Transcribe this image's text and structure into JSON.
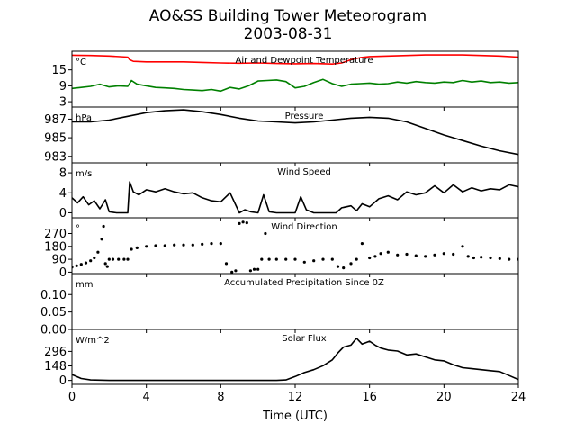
{
  "title_line1": "AO&SS Building Tower Meteorogram",
  "title_line2": "2003-08-31",
  "chart_data": {
    "type": "line",
    "xlabel": "Time (UTC)",
    "xlim": [
      0,
      24
    ],
    "xticks": [
      0,
      4,
      8,
      12,
      16,
      20,
      24
    ],
    "panels": [
      {
        "title": "Air and Dewpoint Temperature",
        "unit": "°C",
        "ylim": [
          1,
          22
        ],
        "yticks": [
          3,
          9,
          15
        ],
        "series": [
          {
            "color": "#ff0000",
            "style": "line",
            "x": [
              0,
              1,
              2,
              3,
              3.1,
              3.3,
              4,
              5,
              6,
              7,
              8,
              9,
              10,
              11,
              12,
              13,
              14,
              14.5,
              15,
              15.5,
              16,
              17,
              18,
              19,
              20,
              21,
              22,
              23,
              24
            ],
            "y": [
              20.5,
              20.4,
              20.2,
              19.8,
              18.8,
              18.2,
              18.0,
              18.0,
              18.0,
              17.8,
              17.6,
              17.5,
              17.6,
              17.4,
              17.3,
              17.4,
              17.2,
              17.6,
              18.8,
              19.6,
              20.0,
              20.2,
              20.4,
              20.6,
              20.6,
              20.6,
              20.4,
              20.2,
              19.8
            ]
          },
          {
            "color": "#008000",
            "style": "line",
            "x": [
              0,
              0.5,
              1,
              1.5,
              2,
              2.5,
              3,
              3.2,
              3.5,
              4,
              4.5,
              5,
              5.5,
              6,
              6.5,
              7,
              7.5,
              8,
              8.5,
              9,
              9.5,
              10,
              10.5,
              11,
              11.5,
              12,
              12.5,
              13,
              13.5,
              14,
              14.5,
              15,
              15.5,
              16,
              16.5,
              17,
              17.5,
              18,
              18.5,
              19,
              19.5,
              20,
              20.5,
              21,
              21.5,
              22,
              22.5,
              23,
              23.5,
              24
            ],
            "y": [
              8.0,
              8.4,
              8.8,
              9.6,
              8.6,
              9.0,
              8.8,
              11.0,
              9.6,
              9.0,
              8.4,
              8.2,
              8.0,
              7.6,
              7.4,
              7.2,
              7.6,
              7.0,
              8.4,
              7.8,
              9.0,
              10.8,
              11.0,
              11.2,
              10.6,
              8.2,
              8.8,
              10.2,
              11.4,
              9.8,
              8.8,
              9.6,
              9.8,
              10.0,
              9.6,
              9.8,
              10.4,
              10.0,
              10.6,
              10.2,
              10.0,
              10.4,
              10.2,
              11.0,
              10.4,
              10.8,
              10.2,
              10.4,
              10.0,
              10.2
            ]
          }
        ]
      },
      {
        "title": "Pressure",
        "unit": "hPa",
        "ylim": [
          982.3,
          988.3
        ],
        "yticks": [
          983,
          985,
          987
        ],
        "series": [
          {
            "color": "#000000",
            "style": "line",
            "x": [
              0,
              1,
              2,
              3,
              4,
              5,
              6,
              7,
              8,
              9,
              10,
              11,
              12,
              13,
              14,
              15,
              16,
              17,
              18,
              19,
              20,
              21,
              22,
              23,
              24
            ],
            "y": [
              986.7,
              986.7,
              986.9,
              987.3,
              987.7,
              987.9,
              988.0,
              987.8,
              987.5,
              987.1,
              986.8,
              986.7,
              986.6,
              986.7,
              986.9,
              987.1,
              987.2,
              987.1,
              986.7,
              986.0,
              985.3,
              984.7,
              984.1,
              983.6,
              983.2
            ]
          }
        ]
      },
      {
        "title": "Wind Speed",
        "unit": "m/s",
        "ylim": [
          -1,
          10
        ],
        "yticks": [
          0,
          4,
          8
        ],
        "series": [
          {
            "color": "#000000",
            "style": "line",
            "x": [
              0,
              0.3,
              0.6,
              0.9,
              1.2,
              1.5,
              1.8,
              2.0,
              2.4,
              2.8,
              3.0,
              3.1,
              3.3,
              3.6,
              4,
              4.5,
              5,
              5.5,
              6,
              6.5,
              7,
              7.5,
              8,
              8.5,
              9,
              9.3,
              9.6,
              10,
              10.3,
              10.6,
              11,
              11.5,
              12,
              12.3,
              12.6,
              13,
              13.5,
              14,
              14.2,
              14.5,
              15,
              15.3,
              15.6,
              16,
              16.5,
              17,
              17.5,
              18,
              18.5,
              19,
              19.5,
              20,
              20.5,
              21,
              21.5,
              22,
              22.5,
              23,
              23.5,
              24
            ],
            "y": [
              3.0,
              2.0,
              3.2,
              1.6,
              2.4,
              0.8,
              2.6,
              0.2,
              0.0,
              0.0,
              0.0,
              6.2,
              4.2,
              3.6,
              4.6,
              4.2,
              4.8,
              4.2,
              3.8,
              4.0,
              3.0,
              2.4,
              2.2,
              4.0,
              0.0,
              0.6,
              0.2,
              0.0,
              3.6,
              0.2,
              0.0,
              0.0,
              0.0,
              3.2,
              0.6,
              0.0,
              0.0,
              0.0,
              0.0,
              1.0,
              1.4,
              0.4,
              1.8,
              1.2,
              2.8,
              3.4,
              2.6,
              4.2,
              3.6,
              4.0,
              5.4,
              4.0,
              5.6,
              4.2,
              5.0,
              4.4,
              4.8,
              4.6,
              5.6,
              5.2
            ]
          }
        ]
      },
      {
        "title": "Wind Direction",
        "unit": "°",
        "ylim": [
          -10,
          380
        ],
        "yticks": [
          0,
          90,
          180,
          270
        ],
        "series": [
          {
            "color": "#000000",
            "style": "markers",
            "x": [
              0,
              0.25,
              0.5,
              0.75,
              1.0,
              1.2,
              1.4,
              1.6,
              1.7,
              1.8,
              1.9,
              2.0,
              2.2,
              2.5,
              2.8,
              3.0,
              3.2,
              3.5,
              4.0,
              4.5,
              5.0,
              5.5,
              6.0,
              6.5,
              7.0,
              7.5,
              8.0,
              8.3,
              8.6,
              8.8,
              9.0,
              9.2,
              9.4,
              9.6,
              9.8,
              10.0,
              10.2,
              10.4,
              10.6,
              11.0,
              11.5,
              12.0,
              12.5,
              13.0,
              13.5,
              14.0,
              14.3,
              14.6,
              15.0,
              15.3,
              15.6,
              16.0,
              16.3,
              16.6,
              17.0,
              17.5,
              18.0,
              18.5,
              19.0,
              19.5,
              20.0,
              20.5,
              21.0,
              21.3,
              21.6,
              22.0,
              22.5,
              23.0,
              23.5,
              24.0
            ],
            "y": [
              35,
              45,
              55,
              65,
              80,
              100,
              140,
              230,
              320,
              60,
              40,
              90,
              90,
              90,
              90,
              90,
              160,
              170,
              180,
              185,
              185,
              190,
              190,
              190,
              195,
              200,
              200,
              60,
              0,
              10,
              340,
              350,
              345,
              10,
              20,
              20,
              90,
              270,
              90,
              90,
              90,
              90,
              70,
              80,
              90,
              90,
              40,
              30,
              60,
              90,
              200,
              100,
              110,
              130,
              140,
              120,
              125,
              115,
              110,
              120,
              130,
              125,
              180,
              110,
              100,
              105,
              100,
              95,
              90,
              90
            ]
          }
        ]
      },
      {
        "title": "Accumulated Precipitation Since 0Z",
        "unit": "mm",
        "ylim": [
          0,
          0.16
        ],
        "yticks": [
          0.0,
          0.05,
          0.1
        ],
        "ytick_labels": [
          "0.00",
          "0.05",
          "0.10"
        ],
        "series": [
          {
            "color": "#000000",
            "style": "line",
            "x": [
              0,
              24
            ],
            "y": [
              0,
              0
            ]
          }
        ]
      },
      {
        "title": "Solar Flux",
        "unit": "W/m^2",
        "ylim": [
          -40,
          520
        ],
        "yticks": [
          0,
          148,
          296
        ],
        "series": [
          {
            "color": "#000000",
            "style": "line",
            "x": [
              0,
              0.5,
              1,
              2,
              4,
              6,
              8,
              10,
              11,
              11.5,
              12,
              12.5,
              13,
              13.5,
              14,
              14.3,
              14.6,
              15,
              15.3,
              15.6,
              16,
              16.3,
              16.6,
              17,
              17.5,
              18,
              18.5,
              19,
              19.5,
              20,
              20.5,
              21,
              21.5,
              22,
              22.5,
              23,
              23.5,
              24
            ],
            "y": [
              60,
              20,
              5,
              0,
              0,
              0,
              0,
              0,
              0,
              5,
              40,
              80,
              110,
              150,
              210,
              280,
              340,
              360,
              430,
              370,
              400,
              360,
              330,
              310,
              300,
              260,
              270,
              240,
              210,
              200,
              160,
              130,
              120,
              110,
              100,
              90,
              50,
              10
            ]
          }
        ]
      }
    ]
  }
}
